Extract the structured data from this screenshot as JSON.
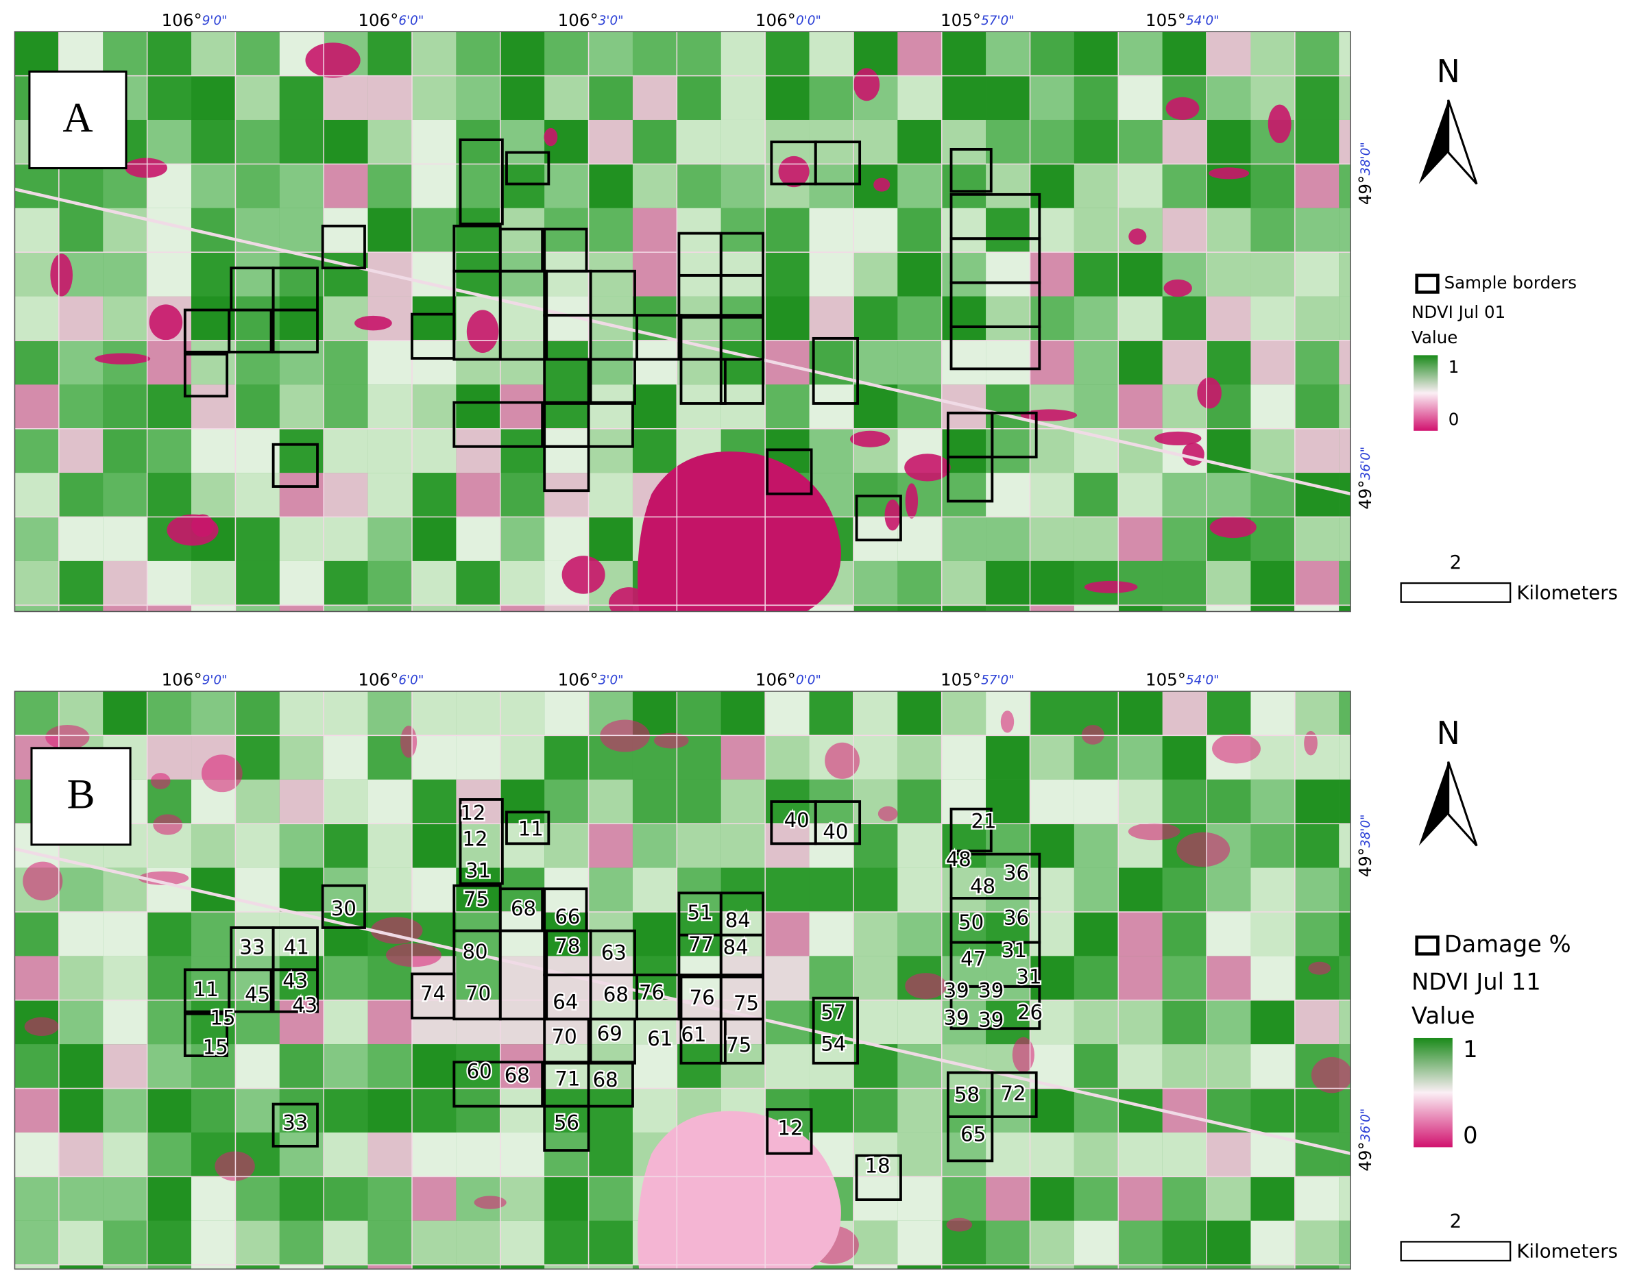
{
  "panels": [
    {
      "label": "A",
      "longitude_labels": [
        {
          "degrees": "106°",
          "minutes": "9'0\""
        },
        {
          "degrees": "106°",
          "minutes": "6'0\""
        },
        {
          "degrees": "106°",
          "minutes": "3'0\""
        },
        {
          "degrees": "106°",
          "minutes": "0'0\""
        },
        {
          "degrees": "105°",
          "minutes": "57'0\""
        },
        {
          "degrees": "105°",
          "minutes": "54'0\""
        }
      ],
      "latitude_labels": [
        {
          "degrees": "49°",
          "minutes": "38'0\""
        },
        {
          "degrees": "49°",
          "minutes": "36'0\""
        }
      ],
      "north": "N",
      "legend": {
        "border": "Sample borders",
        "layer": "NDVI Jul 01",
        "value": "Value",
        "high": "1",
        "low": "0"
      },
      "scale": {
        "distance": "2",
        "unit": "Kilometers"
      }
    },
    {
      "label": "B",
      "longitude_labels": [
        {
          "degrees": "106°",
          "minutes": "9'0\""
        },
        {
          "degrees": "106°",
          "minutes": "6'0\""
        },
        {
          "degrees": "106°",
          "minutes": "3'0\""
        },
        {
          "degrees": "106°",
          "minutes": "0'0\""
        },
        {
          "degrees": "105°",
          "minutes": "57'0\""
        },
        {
          "degrees": "105°",
          "minutes": "54'0\""
        }
      ],
      "latitude_labels": [
        {
          "degrees": "49°",
          "minutes": "38'0\""
        },
        {
          "degrees": "49°",
          "minutes": "36'0\""
        }
      ],
      "north": "N",
      "legend": {
        "border": "Damage %",
        "layer": "NDVI Jul 11",
        "value": "Value",
        "high": "1",
        "low": "0"
      },
      "scale": {
        "distance": "2",
        "unit": "Kilometers"
      },
      "damage_labels": [
        "12",
        "11",
        "12",
        "31",
        "75",
        "68",
        "66",
        "51",
        "84",
        "30",
        "33",
        "41",
        "80",
        "78",
        "63",
        "77",
        "84",
        "11",
        "45",
        "43",
        "43",
        "74",
        "70",
        "64",
        "68",
        "76",
        "76",
        "75",
        "15",
        "15",
        "70",
        "69",
        "61",
        "61",
        "75",
        "57",
        "54",
        "60",
        "68",
        "71",
        "68",
        "56",
        "33",
        "12",
        "18",
        "40",
        "40",
        "21",
        "48",
        "36",
        "48",
        "50",
        "36",
        "47",
        "31",
        "39",
        "39",
        "31",
        "39",
        "39",
        "26",
        "58",
        "72",
        "65"
      ]
    }
  ]
}
